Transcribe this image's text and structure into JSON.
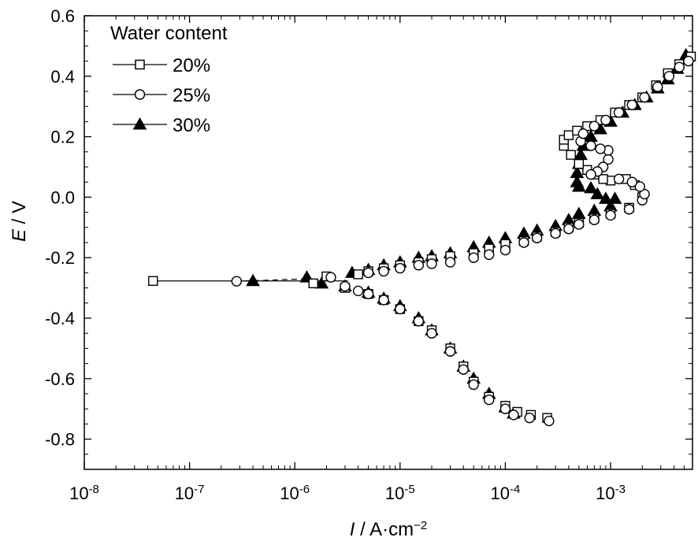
{
  "chart_data": {
    "type": "scatter",
    "xscale": "log",
    "xlim": [
      1e-08,
      0.006
    ],
    "ylim": [
      -0.9,
      0.6
    ],
    "xticks": [
      {
        "value": 1e-08,
        "base": "10",
        "exp": "-8"
      },
      {
        "value": 1e-07,
        "base": "10",
        "exp": "-7"
      },
      {
        "value": 1e-06,
        "base": "10",
        "exp": "-6"
      },
      {
        "value": 1e-05,
        "base": "10",
        "exp": "-5"
      },
      {
        "value": 0.0001,
        "base": "10",
        "exp": "-4"
      },
      {
        "value": 0.001,
        "base": "10",
        "exp": "-3"
      }
    ],
    "yticks": [
      {
        "value": 0.6,
        "label": "0.6"
      },
      {
        "value": 0.4,
        "label": "0.4"
      },
      {
        "value": 0.2,
        "label": "0.2"
      },
      {
        "value": 0.0,
        "label": "0.0"
      },
      {
        "value": -0.2,
        "label": "-0.2"
      },
      {
        "value": -0.4,
        "label": "-0.4"
      },
      {
        "value": -0.6,
        "label": "-0.6"
      },
      {
        "value": -0.8,
        "label": "-0.8"
      }
    ],
    "xlabel": {
      "pre": "I",
      "post": " / A·cm",
      "sup": "−2"
    },
    "ylabel": {
      "pre": "E",
      "post": " / V"
    },
    "legend": {
      "title": "Water content",
      "position": "top-left"
    },
    "series": [
      {
        "name": "20%",
        "marker": "square",
        "points": [
          [
            4.5e-08,
            -0.277
          ],
          [
            1.5e-06,
            -0.285
          ],
          [
            2e-06,
            -0.262
          ],
          [
            3e-06,
            -0.3
          ],
          [
            4e-06,
            -0.255
          ],
          [
            5e-06,
            -0.245
          ],
          [
            5e-06,
            -0.32
          ],
          [
            7e-06,
            -0.235
          ],
          [
            7e-06,
            -0.34
          ],
          [
            1e-05,
            -0.37
          ],
          [
            1e-05,
            -0.225
          ],
          [
            1.5e-05,
            -0.215
          ],
          [
            1.5e-05,
            -0.41
          ],
          [
            2e-05,
            -0.44
          ],
          [
            2e-05,
            -0.205
          ],
          [
            3e-05,
            -0.5
          ],
          [
            3e-05,
            -0.195
          ],
          [
            4e-05,
            -0.56
          ],
          [
            5e-05,
            -0.185
          ],
          [
            5e-05,
            -0.61
          ],
          [
            7e-05,
            -0.17
          ],
          [
            7e-05,
            -0.66
          ],
          [
            0.0001,
            -0.69
          ],
          [
            0.0001,
            -0.155
          ],
          [
            0.00013,
            -0.71
          ],
          [
            0.000175,
            -0.72
          ],
          [
            0.00015,
            -0.145
          ],
          [
            0.00025,
            -0.73
          ],
          [
            0.0002,
            -0.13
          ],
          [
            0.0003,
            -0.115
          ],
          [
            0.0004,
            -0.1
          ],
          [
            0.0005,
            -0.085
          ],
          [
            0.0007,
            -0.07
          ],
          [
            0.001,
            -0.055
          ],
          [
            0.0015,
            -0.035
          ],
          [
            0.002,
            0.0
          ],
          [
            0.0017,
            0.04
          ],
          [
            0.0014,
            0.06
          ],
          [
            0.001,
            0.055
          ],
          [
            0.00085,
            0.06
          ],
          [
            0.0007,
            0.075
          ],
          [
            0.0006,
            0.09
          ],
          [
            0.0005,
            0.11
          ],
          [
            0.00042,
            0.14
          ],
          [
            0.00036,
            0.17
          ],
          [
            0.00036,
            0.19
          ],
          [
            0.0004,
            0.205
          ],
          [
            0.00048,
            0.22
          ],
          [
            0.0006,
            0.235
          ],
          [
            0.0008,
            0.255
          ],
          [
            0.0011,
            0.28
          ],
          [
            0.0015,
            0.305
          ],
          [
            0.002,
            0.33
          ],
          [
            0.0027,
            0.37
          ],
          [
            0.0035,
            0.41
          ],
          [
            0.0045,
            0.44
          ],
          [
            0.0058,
            0.465
          ]
        ]
      },
      {
        "name": "25%",
        "marker": "circle",
        "points": [
          [
            2.8e-07,
            -0.278
          ],
          [
            2.2e-06,
            -0.265
          ],
          [
            3e-06,
            -0.295
          ],
          [
            4e-06,
            -0.31
          ],
          [
            5e-06,
            -0.32
          ],
          [
            5e-06,
            -0.25
          ],
          [
            7e-06,
            -0.245
          ],
          [
            7e-06,
            -0.34
          ],
          [
            1e-05,
            -0.235
          ],
          [
            1e-05,
            -0.37
          ],
          [
            1.5e-05,
            -0.225
          ],
          [
            1.5e-05,
            -0.41
          ],
          [
            2e-05,
            -0.45
          ],
          [
            2e-05,
            -0.22
          ],
          [
            3e-05,
            -0.215
          ],
          [
            3e-05,
            -0.51
          ],
          [
            4e-05,
            -0.57
          ],
          [
            5e-05,
            -0.2
          ],
          [
            5e-05,
            -0.62
          ],
          [
            7e-05,
            -0.19
          ],
          [
            7e-05,
            -0.67
          ],
          [
            0.0001,
            -0.175
          ],
          [
            0.0001,
            -0.7
          ],
          [
            0.00012,
            -0.72
          ],
          [
            0.00017,
            -0.73
          ],
          [
            0.00015,
            -0.15
          ],
          [
            0.00026,
            -0.74
          ],
          [
            0.0002,
            -0.135
          ],
          [
            0.0003,
            -0.12
          ],
          [
            0.0004,
            -0.105
          ],
          [
            0.0005,
            -0.09
          ],
          [
            0.0007,
            -0.075
          ],
          [
            0.001,
            -0.06
          ],
          [
            0.0015,
            -0.04
          ],
          [
            0.002,
            -0.01
          ],
          [
            0.0021,
            0.01
          ],
          [
            0.0019,
            0.035
          ],
          [
            0.0016,
            0.05
          ],
          [
            0.0012,
            0.06
          ],
          [
            0.00095,
            0.125
          ],
          [
            0.00085,
            0.1
          ],
          [
            0.00075,
            0.085
          ],
          [
            0.00065,
            0.075
          ],
          [
            0.00095,
            0.155
          ],
          [
            0.0008,
            0.16
          ],
          [
            0.00065,
            0.17
          ],
          [
            0.00052,
            0.185
          ],
          [
            0.00055,
            0.21
          ],
          [
            0.0007,
            0.235
          ],
          [
            0.0009,
            0.255
          ],
          [
            0.0012,
            0.28
          ],
          [
            0.0016,
            0.305
          ],
          [
            0.0021,
            0.33
          ],
          [
            0.0028,
            0.365
          ],
          [
            0.0036,
            0.4
          ],
          [
            0.0045,
            0.43
          ],
          [
            0.0055,
            0.45
          ]
        ]
      },
      {
        "name": "30%",
        "marker": "triangle",
        "points": [
          [
            4e-07,
            -0.277
          ],
          [
            1.3e-06,
            -0.265
          ],
          [
            1.8e-06,
            -0.285
          ],
          [
            3e-06,
            -0.295
          ],
          [
            3.5e-06,
            -0.25
          ],
          [
            5e-06,
            -0.24
          ],
          [
            5e-06,
            -0.315
          ],
          [
            7e-06,
            -0.225
          ],
          [
            7e-06,
            -0.335
          ],
          [
            1e-05,
            -0.215
          ],
          [
            1e-05,
            -0.36
          ],
          [
            1.5e-05,
            -0.2
          ],
          [
            1.5e-05,
            -0.4
          ],
          [
            2e-05,
            -0.195
          ],
          [
            2e-05,
            -0.44
          ],
          [
            3e-05,
            -0.5
          ],
          [
            3e-05,
            -0.185
          ],
          [
            4e-05,
            -0.56
          ],
          [
            5e-05,
            -0.165
          ],
          [
            5e-05,
            -0.6
          ],
          [
            7e-05,
            -0.15
          ],
          [
            7e-05,
            -0.65
          ],
          [
            0.0001,
            -0.135
          ],
          [
            0.0001,
            -0.695
          ],
          [
            0.00012,
            -0.715
          ],
          [
            0.00015,
            -0.12
          ],
          [
            0.0002,
            -0.11
          ],
          [
            0.0003,
            -0.095
          ],
          [
            0.0004,
            -0.075
          ],
          [
            0.0005,
            -0.055
          ],
          [
            0.0007,
            -0.045
          ],
          [
            0.001,
            -0.03
          ],
          [
            0.0011,
            -0.005
          ],
          [
            0.0009,
            -0.005
          ],
          [
            0.00075,
            0.01
          ],
          [
            0.00065,
            0.03
          ],
          [
            0.0005,
            0.035
          ],
          [
            0.00048,
            0.05
          ],
          [
            0.00048,
            0.08
          ],
          [
            0.0005,
            0.11
          ],
          [
            0.00052,
            0.14
          ],
          [
            0.00055,
            0.17
          ],
          [
            0.00065,
            0.2
          ],
          [
            0.0008,
            0.225
          ],
          [
            0.001,
            0.25
          ],
          [
            0.0013,
            0.28
          ],
          [
            0.0017,
            0.305
          ],
          [
            0.0022,
            0.33
          ],
          [
            0.0028,
            0.36
          ],
          [
            0.0035,
            0.39
          ],
          [
            0.0043,
            0.425
          ],
          [
            0.005,
            0.455
          ],
          [
            0.0052,
            0.47
          ]
        ]
      }
    ]
  }
}
